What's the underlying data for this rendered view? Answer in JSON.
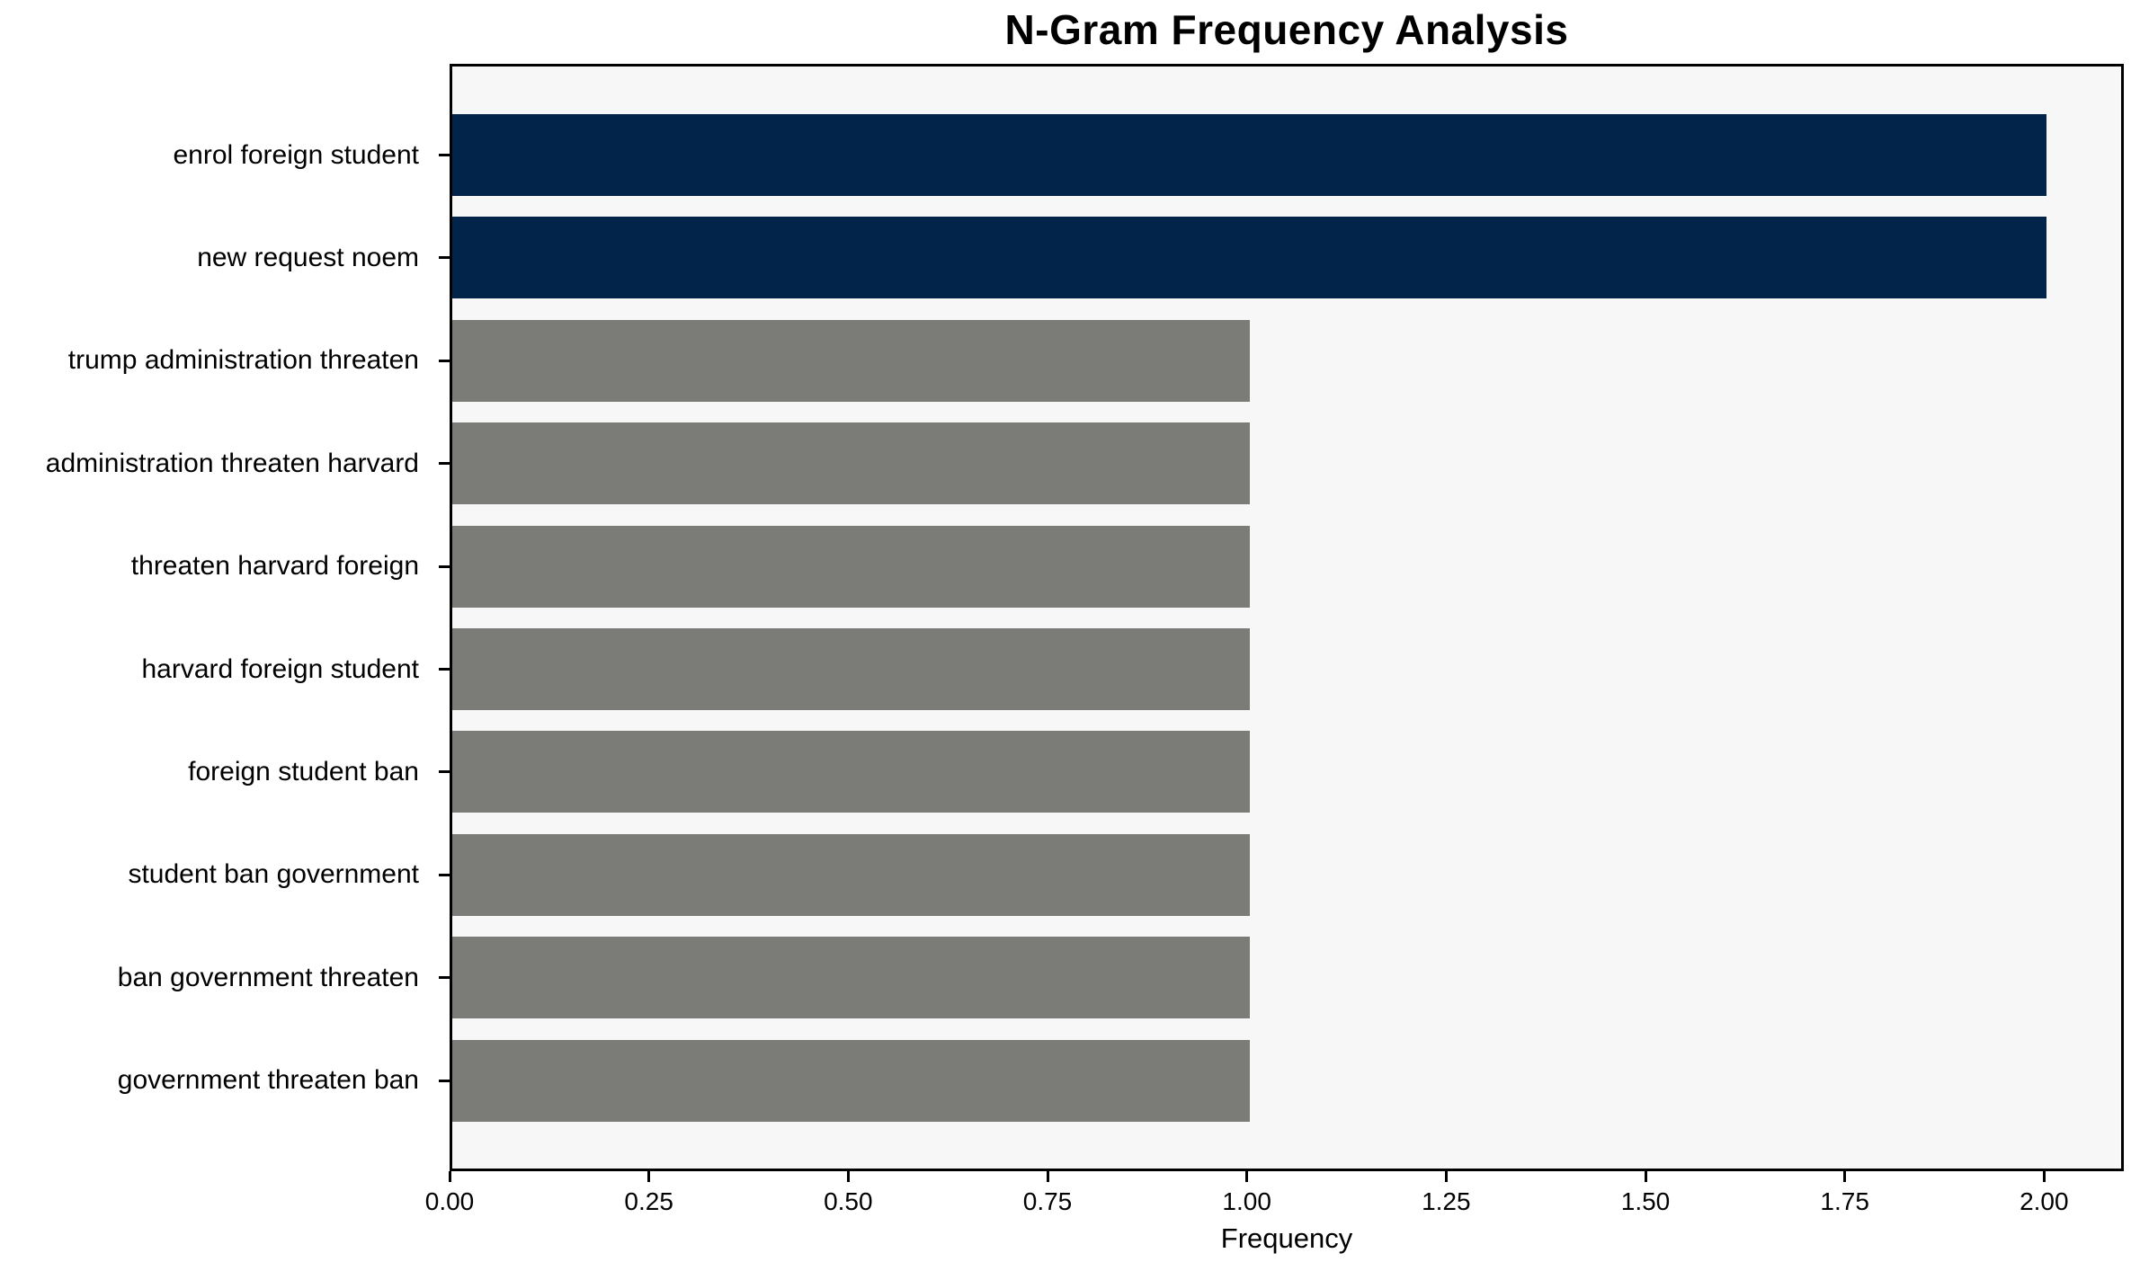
{
  "chart_data": {
    "type": "bar",
    "orientation": "horizontal",
    "title": "N-Gram Frequency Analysis",
    "xlabel": "Frequency",
    "ylabel": "",
    "categories": [
      "enrol foreign student",
      "new request noem",
      "trump administration threaten",
      "administration threaten harvard",
      "threaten harvard foreign",
      "harvard foreign student",
      "foreign student ban",
      "student ban government",
      "ban government threaten",
      "government threaten ban"
    ],
    "values": [
      2,
      2,
      1,
      1,
      1,
      1,
      1,
      1,
      1,
      1
    ],
    "bar_color_keys": [
      "highlight",
      "highlight",
      "default",
      "default",
      "default",
      "default",
      "default",
      "default",
      "default",
      "default"
    ],
    "xlim": [
      0,
      2.1
    ],
    "xticks": [
      0,
      0.25,
      0.5,
      0.75,
      1.0,
      1.25,
      1.5,
      1.75,
      2.0
    ],
    "xtick_labels": [
      "0.00",
      "0.25",
      "0.50",
      "0.75",
      "1.00",
      "1.25",
      "1.50",
      "1.75",
      "2.00"
    ],
    "grid": false,
    "legend": "none",
    "colors": {
      "highlight": "#02234a",
      "default": "#7b7b78",
      "plot_bg": "#f7f7f7",
      "figure_bg": "#ffffff",
      "axis": "#000000",
      "text": "#000000"
    }
  }
}
